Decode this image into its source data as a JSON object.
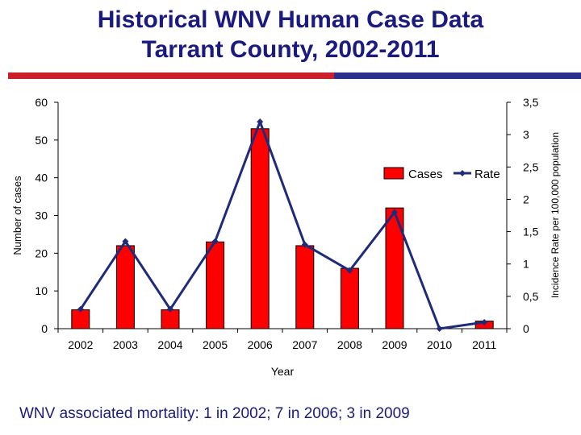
{
  "title_lines": [
    "Historical WNV Human Case Data",
    "Tarrant County, 2002-2011"
  ],
  "footer_note": "WNV associated mortality: 1 in 2002;  7 in 2006; 3 in 2009",
  "colors": {
    "title": "#1a1a80",
    "bar": "#ff0000",
    "line": "#1f2a7a",
    "rule_red": "#cc1f2b",
    "rule_blue": "#2b2f8f"
  },
  "chart_data": {
    "type": "bar",
    "categories": [
      "2002",
      "2003",
      "2004",
      "2005",
      "2006",
      "2007",
      "2008",
      "2009",
      "2010",
      "2011"
    ],
    "series": [
      {
        "name": "Cases",
        "axis": "left",
        "type": "bar",
        "values": [
          5,
          22,
          5,
          23,
          53,
          22,
          16,
          32,
          0,
          2
        ]
      },
      {
        "name": "Rate",
        "axis": "right",
        "type": "line",
        "values": [
          0.3,
          1.35,
          0.3,
          1.35,
          3.2,
          1.3,
          0.9,
          1.8,
          0.0,
          0.1
        ]
      }
    ],
    "xlabel": "Year",
    "ylabel": "Number of cases",
    "y2label": "Incidence Rate per 100,000 population",
    "ylim": [
      0,
      60
    ],
    "y2lim": [
      0,
      3.5
    ],
    "yticks": [
      "0",
      "10",
      "20",
      "30",
      "40",
      "50",
      "60"
    ],
    "y2ticks": [
      "0",
      "0,5",
      "1",
      "1,5",
      "2",
      "2,5",
      "3",
      "3,5"
    ],
    "legend": [
      "Cases",
      "Rate"
    ],
    "legend_position": "top-right",
    "grid": false
  }
}
